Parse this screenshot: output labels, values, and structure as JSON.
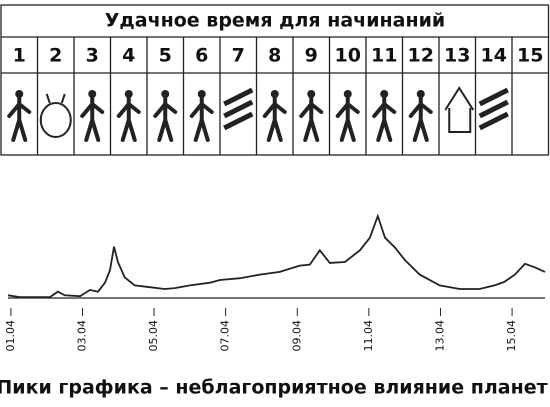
{
  "table": {
    "title": "Удачное время для начинаний",
    "columns": [
      "1",
      "2",
      "3",
      "4",
      "5",
      "6",
      "7",
      "8",
      "9",
      "10",
      "11",
      "12",
      "13",
      "14",
      "15"
    ]
  },
  "chart_data": {
    "type": "line",
    "caption": "Пики графика – неблагоприятное влияние планет",
    "x": [
      0.92,
      1.25,
      2.09,
      2.31,
      2.51,
      2.93,
      3.21,
      3.43,
      3.63,
      3.77,
      3.88,
      3.99,
      4.18,
      4.46,
      4.88,
      5.3,
      5.58,
      6.0,
      6.56,
      6.84,
      7.4,
      7.96,
      8.51,
      9.07,
      9.35,
      9.63,
      9.91,
      10.33,
      10.75,
      11.03,
      11.25,
      11.45,
      11.73,
      12.01,
      12.42,
      12.98,
      13.54,
      14.09,
      14.51,
      14.79,
      15.08,
      15.36,
      15.64,
      15.92
    ],
    "values": [
      3,
      1,
      1,
      7,
      3,
      2,
      9,
      7,
      17,
      31,
      57,
      40,
      23,
      14,
      12,
      10,
      11,
      14,
      17,
      20,
      22,
      26,
      29,
      36,
      37,
      53,
      39,
      40,
      53,
      67,
      91,
      67,
      56,
      42,
      26,
      14,
      10,
      10,
      14,
      18,
      26,
      38,
      34,
      29
    ],
    "color": "#222222",
    "xlim": [
      0.92,
      15.92
    ],
    "ylim": [
      0,
      100
    ],
    "xticks": [
      {
        "value": 1,
        "label": "01.04"
      },
      {
        "value": 3,
        "label": "03.04"
      },
      {
        "value": 5,
        "label": "05.04"
      },
      {
        "value": 7,
        "label": "07.04"
      },
      {
        "value": 9,
        "label": "09.04"
      },
      {
        "value": 11,
        "label": "11.04"
      },
      {
        "value": 13,
        "label": "13.04"
      },
      {
        "value": 15,
        "label": "15.04"
      }
    ]
  }
}
